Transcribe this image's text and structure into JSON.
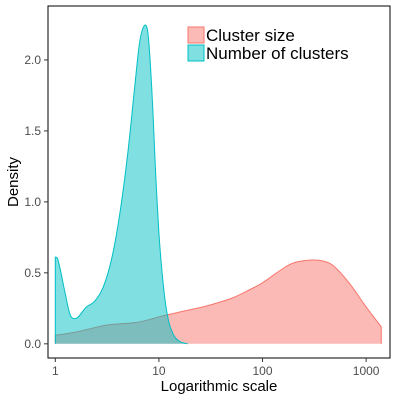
{
  "chart_data": {
    "type": "area",
    "xlabel": "Logarithmic scale",
    "ylabel": "Density",
    "x_scale": "log10",
    "xlim": [
      0.85,
      1700
    ],
    "ylim": [
      -0.1,
      2.38
    ],
    "x_ticks": [
      1,
      10,
      100,
      1000
    ],
    "x_tick_labels": [
      "1",
      "10",
      "100",
      "1000"
    ],
    "y_ticks": [
      0,
      0.5,
      1,
      1.5,
      2
    ],
    "y_tick_labels": [
      "0.0",
      "0.5",
      "1.0",
      "1.5",
      "2.0"
    ],
    "grid": false,
    "legend_position": "top-right",
    "series": [
      {
        "name": "Cluster size",
        "fill": "#f8766d",
        "stroke": "#f8766d",
        "opacity": 0.5,
        "x": [
          1,
          1.5,
          2,
          3,
          4,
          6,
          8,
          10,
          15,
          20,
          30,
          50,
          70,
          100,
          150,
          200,
          300,
          400,
          500,
          700,
          1000,
          1400
        ],
        "y": [
          0.06,
          0.08,
          0.1,
          0.13,
          0.14,
          0.15,
          0.17,
          0.19,
          0.22,
          0.24,
          0.27,
          0.32,
          0.37,
          0.43,
          0.52,
          0.57,
          0.59,
          0.58,
          0.54,
          0.42,
          0.26,
          0.12
        ]
      },
      {
        "name": "Number of clusters",
        "fill": "#00bfc4",
        "stroke": "#00bfc4",
        "opacity": 0.5,
        "x": [
          1,
          1.05,
          1.12,
          1.25,
          1.4,
          1.6,
          1.8,
          2,
          2.4,
          2.9,
          3.5,
          4.2,
          5,
          5.8,
          6.5,
          7.2,
          7.8,
          8.3,
          8.8,
          9.3,
          10,
          10.8,
          11.6,
          12.5,
          13.5,
          14.5,
          16,
          17.5,
          19
        ],
        "y": [
          0.61,
          0.6,
          0.52,
          0.35,
          0.2,
          0.18,
          0.22,
          0.26,
          0.3,
          0.4,
          0.6,
          0.92,
          1.34,
          1.79,
          2.12,
          2.24,
          2.2,
          1.95,
          1.6,
          1.2,
          0.78,
          0.48,
          0.28,
          0.15,
          0.08,
          0.04,
          0.015,
          0.005,
          0
        ]
      }
    ]
  }
}
